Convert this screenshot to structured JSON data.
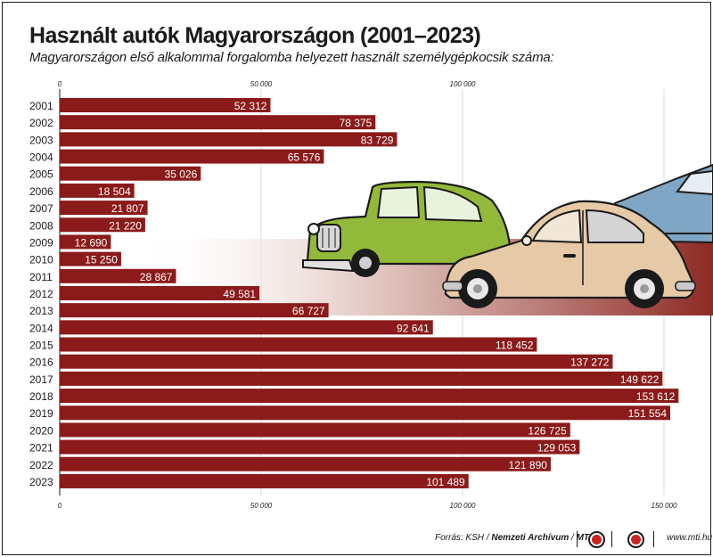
{
  "title": "Használt autók Magyarországon (2001–2023)",
  "subtitle": "Magyarországon első alkalommal forgalomba helyezett használt személygépkocsik száma:",
  "chart_data": {
    "type": "bar",
    "orientation": "horizontal",
    "categories": [
      "2001",
      "2002",
      "2003",
      "2004",
      "2005",
      "2006",
      "2007",
      "2008",
      "2009",
      "2010",
      "2011",
      "2012",
      "2013",
      "2014",
      "2015",
      "2016",
      "2017",
      "2018",
      "2019",
      "2020",
      "2021",
      "2022",
      "2023"
    ],
    "values": [
      52312,
      78375,
      83729,
      65576,
      35026,
      18504,
      21807,
      21220,
      12690,
      15250,
      28867,
      49581,
      66727,
      92641,
      118452,
      137272,
      149622,
      153612,
      151554,
      126725,
      129053,
      121890,
      101489
    ],
    "value_labels": [
      "52 312",
      "78 375",
      "83 729",
      "65 576",
      "35 026",
      "18 504",
      "21 807",
      "21 220",
      "12 690",
      "15 250",
      "28 867",
      "49 581",
      "66 727",
      "92 641",
      "118 452",
      "137 272",
      "149 622",
      "153 612",
      "151 554",
      "126 725",
      "129 053",
      "121 890",
      "101 489"
    ],
    "top_ticks": [
      "0",
      "50 000",
      "100 000"
    ],
    "bottom_ticks": [
      "0",
      "50 000",
      "100 000",
      "150 000"
    ],
    "tick_values_top": [
      0,
      50000,
      100000
    ],
    "tick_values_bottom": [
      0,
      50000,
      100000,
      150000
    ],
    "xlim": [
      0,
      160000
    ],
    "grid": true,
    "bar_color": "#8b1a1a"
  },
  "footer": {
    "source_prefix": "Forrás: KSH / ",
    "source_bold": "Nemzeti Archívum",
    "source_mid": " / ",
    "source_bold2": "MTI",
    "website": "www.mti.hu"
  },
  "illustration": {
    "cars": [
      "green-vintage-car-icon",
      "beige-beetle-car-icon",
      "blue-car-icon"
    ]
  }
}
